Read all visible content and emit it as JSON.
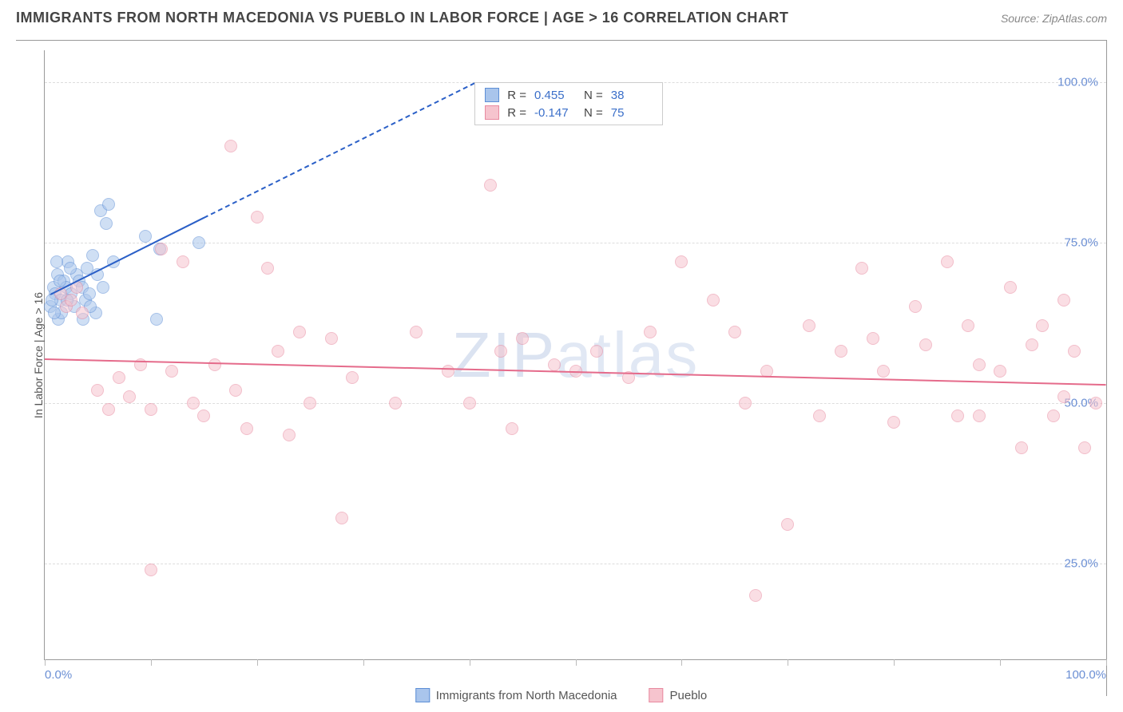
{
  "title": "IMMIGRANTS FROM NORTH MACEDONIA VS PUEBLO IN LABOR FORCE | AGE > 16 CORRELATION CHART",
  "source": "Source: ZipAtlas.com",
  "ylabel": "In Labor Force | Age > 16",
  "watermark": "ZIPatlas",
  "chart": {
    "type": "scatter",
    "xlim": [
      0,
      100
    ],
    "ylim": [
      10,
      105
    ],
    "y_gridlines": [
      25,
      50,
      75,
      100
    ],
    "y_tick_labels": [
      "25.0%",
      "50.0%",
      "75.0%",
      "100.0%"
    ],
    "x_ticks": [
      0,
      10,
      20,
      30,
      40,
      50,
      60,
      70,
      80,
      90,
      100
    ],
    "x_tick_labels": {
      "0": "0.0%",
      "100": "100.0%"
    },
    "background_color": "#ffffff",
    "grid_color": "#dddddd",
    "marker_radius": 8,
    "marker_opacity": 0.55,
    "series": [
      {
        "name": "Immigrants from North Macedonia",
        "color_fill": "#a9c5ec",
        "color_stroke": "#5e8fd6",
        "trend_color": "#2a5fc7",
        "R": "0.455",
        "N": "38",
        "trend": {
          "x1": 0.5,
          "y1": 67,
          "x2": 15,
          "y2": 79,
          "x2_dash": 40.5,
          "y2_dash": 100
        },
        "points": [
          [
            0.5,
            65
          ],
          [
            0.8,
            68
          ],
          [
            1.0,
            67
          ],
          [
            1.2,
            70
          ],
          [
            1.5,
            66
          ],
          [
            1.8,
            69
          ],
          [
            2.0,
            68
          ],
          [
            2.2,
            72
          ],
          [
            2.5,
            67
          ],
          [
            2.8,
            65
          ],
          [
            3.0,
            70
          ],
          [
            3.2,
            69
          ],
          [
            3.5,
            68
          ],
          [
            3.8,
            66
          ],
          [
            4.0,
            71
          ],
          [
            4.2,
            67
          ],
          [
            4.5,
            73
          ],
          [
            4.8,
            64
          ],
          [
            5.0,
            70
          ],
          [
            5.5,
            68
          ],
          [
            1.3,
            63
          ],
          [
            1.6,
            64
          ],
          [
            2.1,
            66
          ],
          [
            2.4,
            71
          ],
          [
            0.7,
            66
          ],
          [
            0.9,
            64
          ],
          [
            1.1,
            72
          ],
          [
            1.4,
            69
          ],
          [
            5.3,
            80
          ],
          [
            5.8,
            78
          ],
          [
            6.0,
            81
          ],
          [
            6.5,
            72
          ],
          [
            9.5,
            76
          ],
          [
            10.5,
            63
          ],
          [
            10.8,
            74
          ],
          [
            14.5,
            75
          ],
          [
            3.6,
            63
          ],
          [
            4.3,
            65
          ]
        ]
      },
      {
        "name": "Pueblo",
        "color_fill": "#f6c4ce",
        "color_stroke": "#e88aa0",
        "trend_color": "#e56b8b",
        "R": "-0.147",
        "N": "75",
        "trend": {
          "x1": 0,
          "y1": 57,
          "x2": 100,
          "y2": 53
        },
        "points": [
          [
            1.5,
            67
          ],
          [
            2.0,
            65
          ],
          [
            2.5,
            66
          ],
          [
            3.0,
            68
          ],
          [
            3.5,
            64
          ],
          [
            5,
            52
          ],
          [
            6,
            49
          ],
          [
            7,
            54
          ],
          [
            8,
            51
          ],
          [
            9,
            56
          ],
          [
            10,
            49
          ],
          [
            11,
            74
          ],
          [
            12,
            55
          ],
          [
            13,
            72
          ],
          [
            14,
            50
          ],
          [
            10,
            24
          ],
          [
            15,
            48
          ],
          [
            16,
            56
          ],
          [
            17.5,
            90
          ],
          [
            18,
            52
          ],
          [
            19,
            46
          ],
          [
            20,
            79
          ],
          [
            21,
            71
          ],
          [
            22,
            58
          ],
          [
            23,
            45
          ],
          [
            24,
            61
          ],
          [
            25,
            50
          ],
          [
            27,
            60
          ],
          [
            28,
            32
          ],
          [
            29,
            54
          ],
          [
            33,
            50
          ],
          [
            35,
            61
          ],
          [
            38,
            55
          ],
          [
            40,
            50
          ],
          [
            42,
            84
          ],
          [
            43,
            58
          ],
          [
            44,
            46
          ],
          [
            45,
            60
          ],
          [
            48,
            56
          ],
          [
            50,
            55
          ],
          [
            52,
            58
          ],
          [
            55,
            54
          ],
          [
            57,
            61
          ],
          [
            60,
            72
          ],
          [
            63,
            66
          ],
          [
            65,
            61
          ],
          [
            66,
            50
          ],
          [
            67,
            20
          ],
          [
            68,
            55
          ],
          [
            70,
            31
          ],
          [
            72,
            62
          ],
          [
            73,
            48
          ],
          [
            75,
            58
          ],
          [
            77,
            71
          ],
          [
            78,
            60
          ],
          [
            79,
            55
          ],
          [
            80,
            47
          ],
          [
            82,
            65
          ],
          [
            83,
            59
          ],
          [
            85,
            72
          ],
          [
            86,
            48
          ],
          [
            87,
            62
          ],
          [
            88,
            56
          ],
          [
            90,
            55
          ],
          [
            91,
            68
          ],
          [
            92,
            43
          ],
          [
            93,
            59
          ],
          [
            94,
            62
          ],
          [
            95,
            48
          ],
          [
            96,
            51
          ],
          [
            97,
            58
          ],
          [
            98,
            43
          ],
          [
            99,
            50
          ],
          [
            96,
            66
          ],
          [
            88,
            48
          ]
        ]
      }
    ],
    "stats_box": {
      "left_pct": 40.5,
      "top_y": 100
    }
  },
  "legend": [
    {
      "label": "Immigrants from North Macedonia",
      "fill": "#a9c5ec",
      "stroke": "#5e8fd6"
    },
    {
      "label": "Pueblo",
      "fill": "#f6c4ce",
      "stroke": "#e88aa0"
    }
  ]
}
